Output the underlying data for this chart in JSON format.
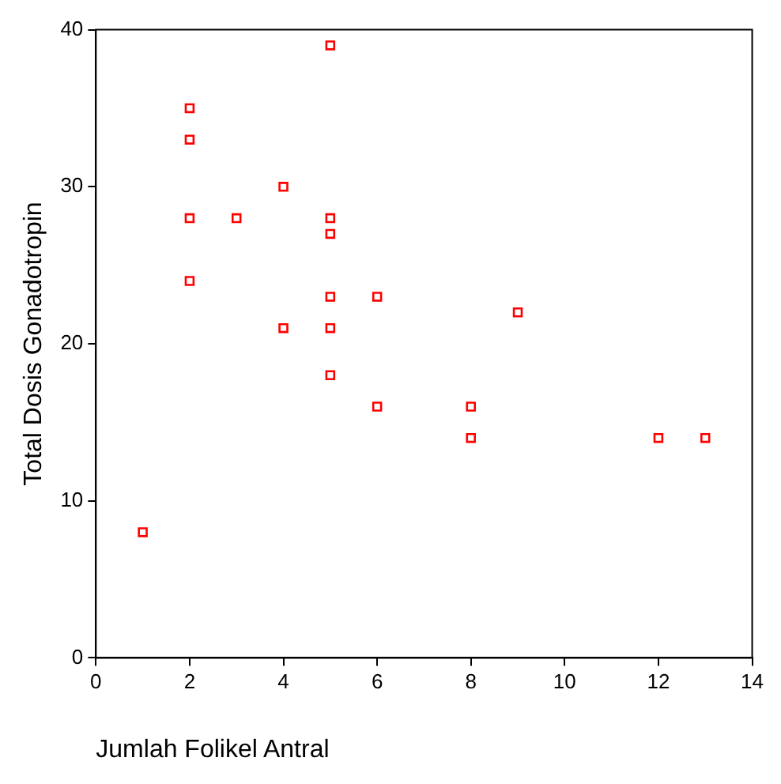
{
  "chart_data": {
    "type": "scatter",
    "xlabel": "Jumlah Folikel Antral",
    "ylabel": "Total Dosis Gonadotropin",
    "xlim": [
      0,
      14
    ],
    "xticks": [
      0,
      2,
      4,
      6,
      8,
      10,
      12,
      14
    ],
    "ylim": [
      0,
      40
    ],
    "yticks": [
      0,
      10,
      20,
      30,
      40
    ],
    "grid": false,
    "legend": false,
    "marker": "square",
    "series": [
      {
        "color": "#ff0000",
        "x": [
          1,
          2,
          2,
          2,
          2,
          3,
          4,
          4,
          5,
          5,
          5,
          5,
          5,
          5,
          6,
          6,
          8,
          8,
          9,
          12,
          13
        ],
        "values": [
          8,
          35,
          33,
          28,
          24,
          28,
          30,
          21,
          39,
          28,
          27,
          23,
          21,
          18,
          23,
          16,
          16,
          14,
          22,
          14,
          14
        ]
      }
    ]
  }
}
